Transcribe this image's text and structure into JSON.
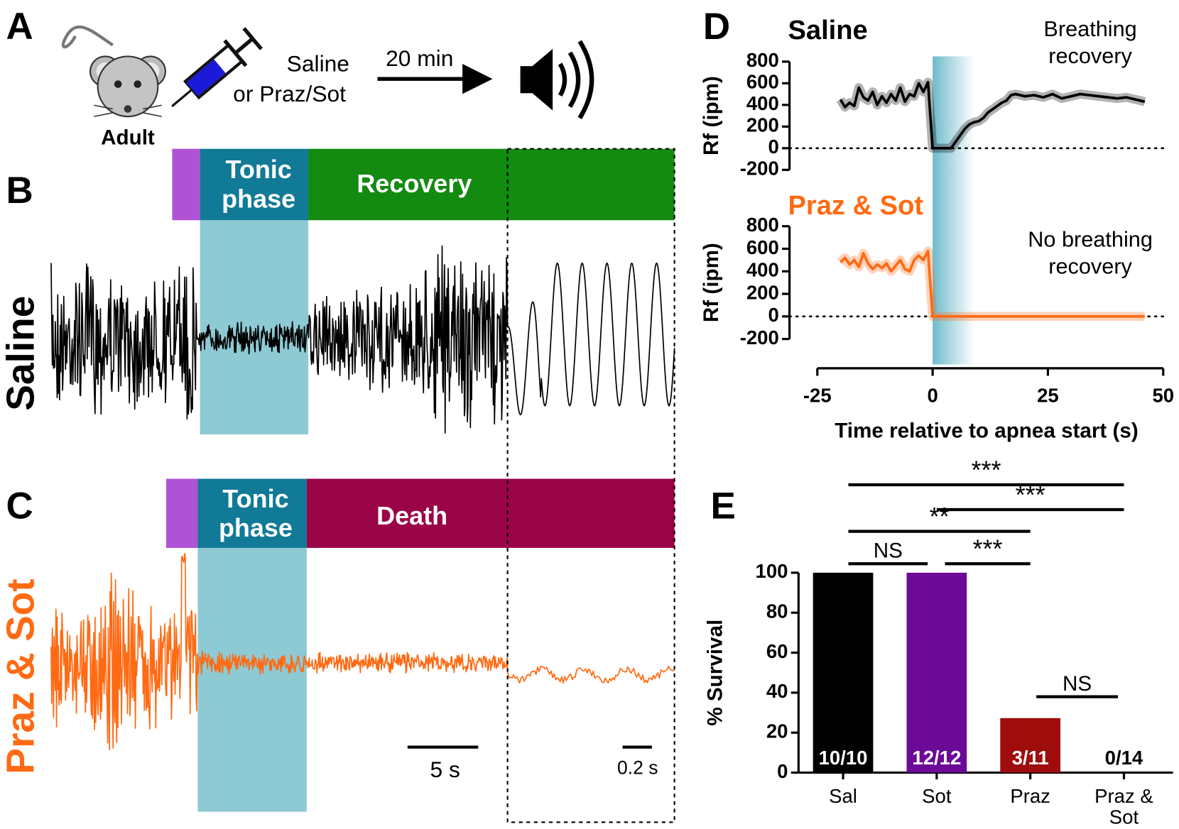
{
  "figure": {
    "panel_letters": [
      "A",
      "B",
      "C",
      "D",
      "E"
    ],
    "A": {
      "subject": "Adult",
      "treatment": [
        "Saline",
        "or Praz/Sot"
      ],
      "delay": "20 min"
    },
    "B": {
      "row_label": "Saline",
      "tonic_label": [
        "Tonic",
        "phase"
      ],
      "outcome_label": "Recovery"
    },
    "C": {
      "row_label": "Praz & Sot",
      "tonic_label": [
        "Tonic",
        "phase"
      ],
      "outcome_label": "Death"
    },
    "scale_bars": [
      "5 s",
      "0.2 s"
    ]
  },
  "chart_data": [
    {
      "type": "line",
      "title": "Saline",
      "annotation": [
        "Breathing",
        "recovery"
      ],
      "ylabel": "Rf (ipm)",
      "xlim": [
        -25,
        50
      ],
      "ylim": [
        -200,
        800
      ],
      "yticks": [
        -200,
        0,
        200,
        400,
        600,
        800
      ],
      "reference_line": 0,
      "apnea_shade": [
        0,
        9
      ],
      "color": "#000000",
      "x": [
        -20,
        -19,
        -18,
        -17,
        -16,
        -15,
        -14,
        -13,
        -12,
        -11,
        -10,
        -9,
        -8,
        -7,
        -6,
        -5,
        -4,
        -3,
        -2,
        -1,
        0,
        1,
        2,
        3,
        4,
        5,
        6,
        7,
        8,
        9,
        10,
        11,
        12,
        13,
        14,
        15,
        16,
        17,
        18,
        19,
        20,
        22,
        24,
        26,
        28,
        30,
        32,
        34,
        36,
        38,
        40,
        42,
        44,
        46
      ],
      "values": [
        450,
        380,
        420,
        390,
        560,
        470,
        440,
        520,
        400,
        480,
        420,
        500,
        440,
        560,
        430,
        500,
        480,
        600,
        520,
        610,
        0,
        0,
        0,
        0,
        0,
        60,
        120,
        180,
        220,
        240,
        250,
        280,
        330,
        360,
        390,
        420,
        440,
        490,
        500,
        490,
        480,
        490,
        470,
        500,
        460,
        480,
        500,
        490,
        480,
        470,
        460,
        470,
        450,
        430
      ]
    },
    {
      "type": "line",
      "title": "Praz & Sot",
      "annotation": [
        "No breathing",
        "recovery"
      ],
      "ylabel": "Rf (ipm)",
      "xlabel": "Time relative to apnea start (s)",
      "xlim": [
        -25,
        50
      ],
      "xticks": [
        -25,
        0,
        25,
        50
      ],
      "ylim": [
        -200,
        800
      ],
      "yticks": [
        -200,
        0,
        200,
        400,
        600,
        800
      ],
      "reference_line": 0,
      "apnea_shade": [
        0,
        9
      ],
      "color": "#ff6a13",
      "x": [
        -20,
        -19,
        -18,
        -17,
        -16,
        -15,
        -14,
        -13,
        -12,
        -11,
        -10,
        -9,
        -8,
        -7,
        -6,
        -5,
        -4,
        -3,
        -2,
        -1,
        0,
        46
      ],
      "values": [
        480,
        520,
        460,
        500,
        440,
        560,
        470,
        420,
        460,
        430,
        470,
        400,
        450,
        500,
        420,
        400,
        500,
        540,
        500,
        580,
        0,
        0
      ]
    },
    {
      "type": "bar",
      "ylabel": "% Survival",
      "categories": [
        "Sal",
        "Sot",
        "Praz",
        "Praz & Sot"
      ],
      "values": [
        100,
        100,
        27.27,
        0
      ],
      "value_labels": [
        "10/10",
        "12/12",
        "3/11",
        "0/14"
      ],
      "colors": [
        "#000000",
        "#6c0a98",
        "#9e0c0c",
        "#000000"
      ],
      "ylim": [
        0,
        100
      ],
      "yticks": [
        0,
        20,
        40,
        60,
        80,
        100
      ],
      "significance": [
        {
          "from": 0,
          "to": 3,
          "label": "***"
        },
        {
          "from": 1,
          "to": 3,
          "label": "***"
        },
        {
          "from": 0,
          "to": 2,
          "label": "**"
        },
        {
          "from": 0,
          "to": 1,
          "label": "NS"
        },
        {
          "from": 1,
          "to": 2,
          "label": "***"
        },
        {
          "from": 2,
          "to": 3,
          "label": "NS"
        }
      ]
    }
  ]
}
